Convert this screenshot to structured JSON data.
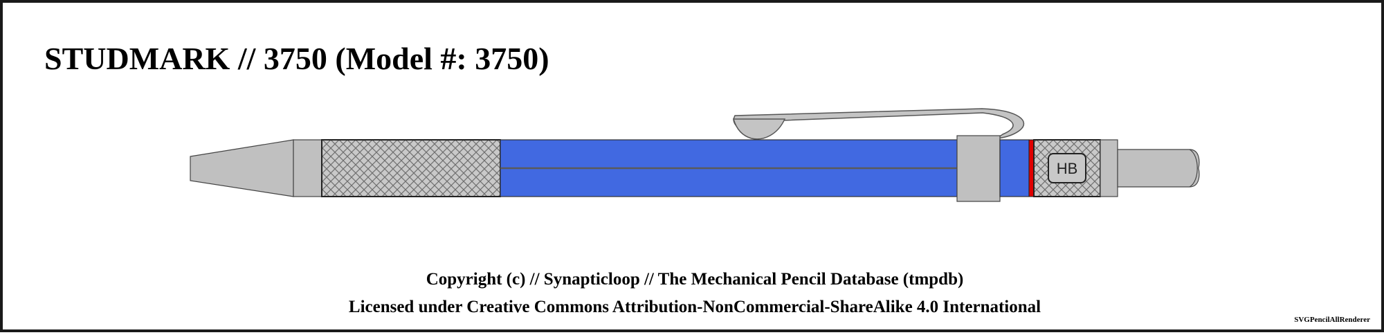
{
  "title": "STUDMARK // 3750 (Model #: 3750)",
  "pencil": {
    "body_color": "#4169e1",
    "metal_color": "#c0c0c0",
    "ring_color": "#e00000",
    "grade_label": "HB"
  },
  "footer": {
    "copyright": "Copyright (c) // Synapticloop // The Mechanical Pencil Database (tmpdb)",
    "license": "Licensed under Creative Commons Attribution-NonCommercial-ShareAlike 4.0 International"
  },
  "renderer": "SVGPencilAllRenderer"
}
